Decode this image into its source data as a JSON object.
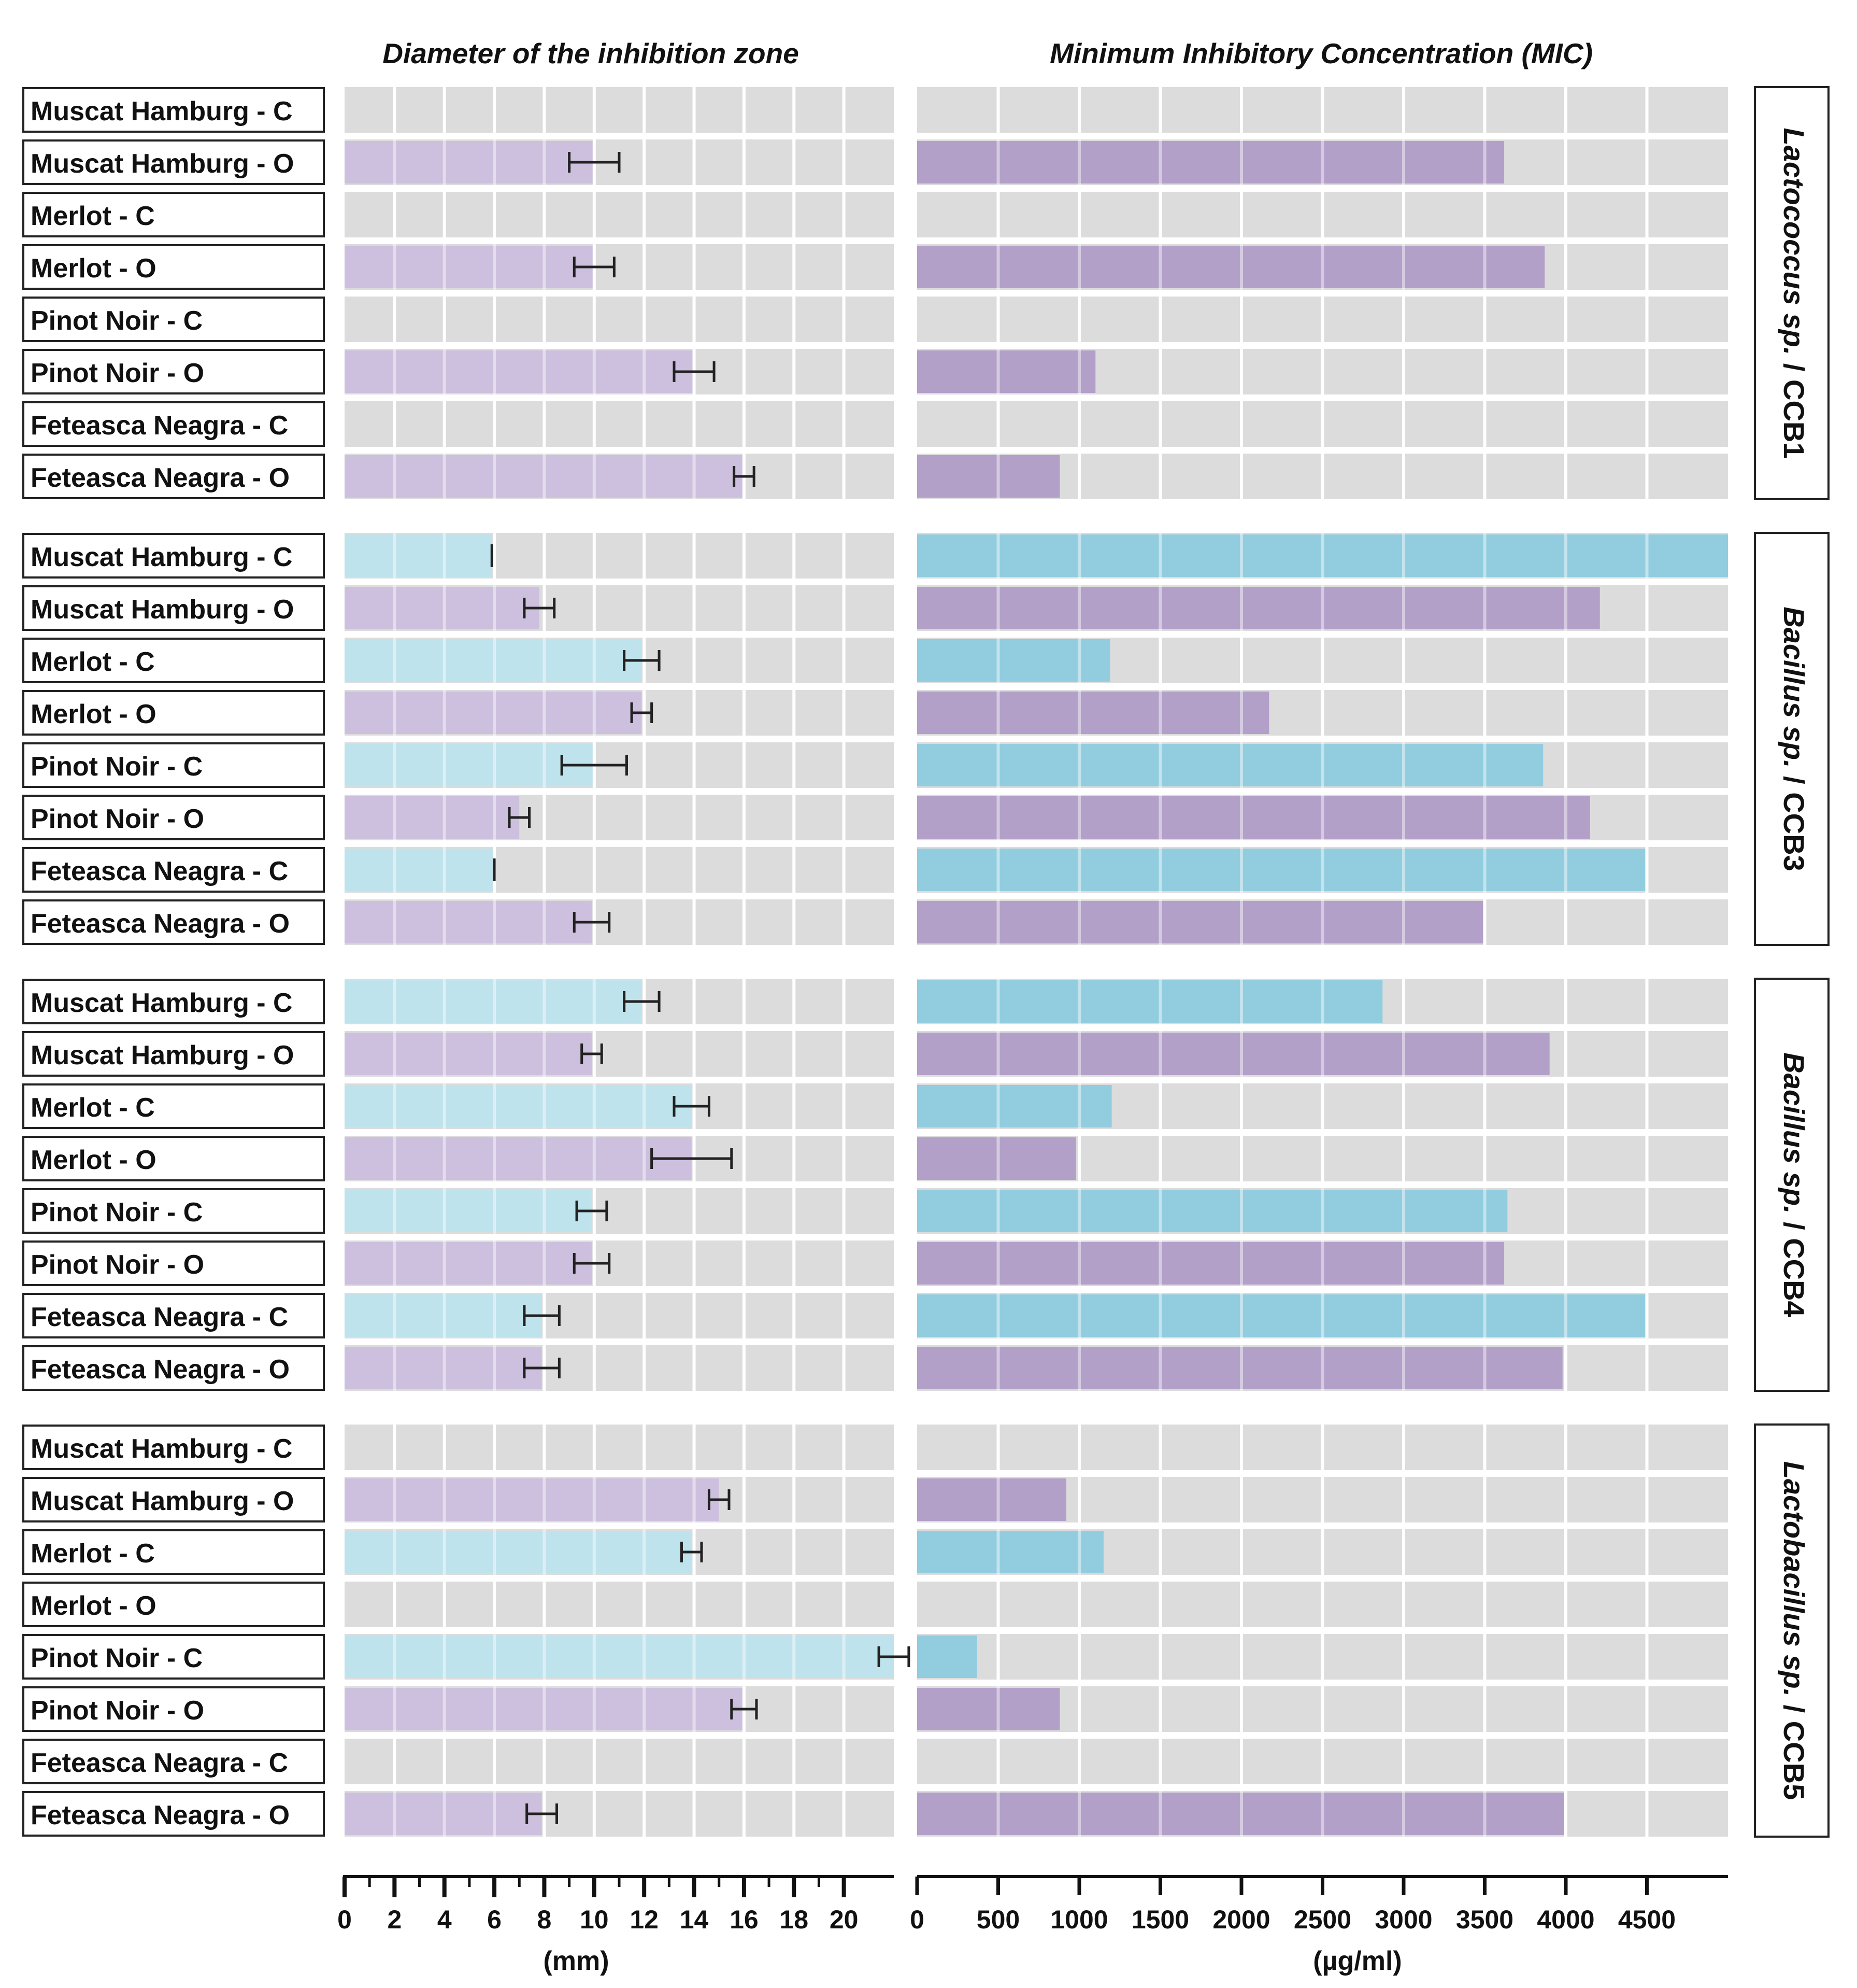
{
  "chart_data": [
    {
      "type": "bar",
      "orientation": "horizontal",
      "title": "Diameter of the inhibition zone",
      "xlabel": "(mm)",
      "xlim": [
        0,
        22
      ],
      "xticks": [
        "0",
        "2",
        "4",
        "6",
        "8",
        "10",
        "12",
        "14",
        "16",
        "18",
        "20"
      ],
      "grid": true,
      "color_C": "#bfe3ec",
      "color_O": "#cdc0de",
      "groups": [
        {
          "name": "Lactococcus sp. / CCB1",
          "rows": [
            {
              "label": "Muscat Hamburg - C",
              "value": 0,
              "error": 0
            },
            {
              "label": "Muscat Hamburg - O",
              "value": 10,
              "error": 1.0
            },
            {
              "label": "Merlot - C",
              "value": 0,
              "error": 0
            },
            {
              "label": "Merlot - O",
              "value": 10,
              "error": 0.8
            },
            {
              "label": "Pinot Noir - C",
              "value": 0,
              "error": 0
            },
            {
              "label": "Pinot Noir - O",
              "value": 14,
              "error": 0.8
            },
            {
              "label": "Feteasca Neagra - C",
              "value": 0,
              "error": 0
            },
            {
              "label": "Feteasca Neagra - O",
              "value": 16,
              "error": 0.4
            }
          ]
        },
        {
          "name": "Bacillus sp. / CCB3",
          "rows": [
            {
              "label": "Muscat Hamburg - C",
              "value": 5.9,
              "error": 0
            },
            {
              "label": "Muscat Hamburg - O",
              "value": 7.8,
              "error": 0.6
            },
            {
              "label": "Merlot - C",
              "value": 11.9,
              "error": 0.7
            },
            {
              "label": "Merlot - O",
              "value": 11.9,
              "error": 0.4
            },
            {
              "label": "Pinot Noir - C",
              "value": 10,
              "error": 1.3
            },
            {
              "label": "Pinot Noir - O",
              "value": 7,
              "error": 0.4
            },
            {
              "label": "Feteasca Neagra - C",
              "value": 6,
              "error": 0
            },
            {
              "label": "Feteasca Neagra - O",
              "value": 9.9,
              "error": 0.7
            }
          ]
        },
        {
          "name": "Bacillus sp. / CCB4",
          "rows": [
            {
              "label": "Muscat Hamburg - C",
              "value": 11.9,
              "error": 0.7
            },
            {
              "label": "Muscat Hamburg - O",
              "value": 9.9,
              "error": 0.4
            },
            {
              "label": "Merlot - C",
              "value": 13.9,
              "error": 0.7
            },
            {
              "label": "Merlot - O",
              "value": 13.9,
              "error": 1.6
            },
            {
              "label": "Pinot Noir - C",
              "value": 9.9,
              "error": 0.6
            },
            {
              "label": "Pinot Noir - O",
              "value": 9.9,
              "error": 0.7
            },
            {
              "label": "Feteasca Neagra - C",
              "value": 7.9,
              "error": 0.7
            },
            {
              "label": "Feteasca Neagra - O",
              "value": 7.9,
              "error": 0.7
            }
          ]
        },
        {
          "name": "Lactobacillus sp. / CCB5",
          "rows": [
            {
              "label": "Muscat Hamburg - C",
              "value": 0,
              "error": 0
            },
            {
              "label": "Muscat Hamburg - O",
              "value": 15,
              "error": 0.4
            },
            {
              "label": "Merlot - C",
              "value": 13.9,
              "error": 0.4
            },
            {
              "label": "Merlot - O",
              "value": 0,
              "error": 0
            },
            {
              "label": "Pinot Noir - C",
              "value": 22,
              "error": 0.6
            },
            {
              "label": "Pinot Noir - O",
              "value": 16,
              "error": 0.5
            },
            {
              "label": "Feteasca Neagra - C",
              "value": 0,
              "error": 0
            },
            {
              "label": "Feteasca Neagra - O",
              "value": 7.9,
              "error": 0.6
            }
          ]
        }
      ]
    },
    {
      "type": "bar",
      "orientation": "horizontal",
      "title": "Minimum Inhibitory Concentration (MIC)",
      "xlabel": "(µg/ml)",
      "xlim": [
        0,
        5000
      ],
      "xticks": [
        "0",
        "500",
        "1000",
        "1500",
        "2000",
        "2500",
        "3000",
        "3500",
        "4000",
        "4500"
      ],
      "grid": true,
      "color_C": "#92cddf",
      "color_O": "#b3a0c9",
      "groups": [
        {
          "name": "Lactococcus sp. / CCB1",
          "rows": [
            {
              "label": "Muscat Hamburg - C",
              "value": 0
            },
            {
              "label": "Muscat Hamburg - O",
              "value": 3620
            },
            {
              "label": "Merlot - C",
              "value": 0
            },
            {
              "label": "Merlot - O",
              "value": 3870
            },
            {
              "label": "Pinot Noir - C",
              "value": 0
            },
            {
              "label": "Pinot Noir - O",
              "value": 1100
            },
            {
              "label": "Feteasca Neagra - C",
              "value": 0
            },
            {
              "label": "Feteasca Neagra - O",
              "value": 880
            }
          ]
        },
        {
          "name": "Bacillus sp. / CCB3",
          "rows": [
            {
              "label": "Muscat Hamburg - C",
              "value": 5000
            },
            {
              "label": "Muscat Hamburg - O",
              "value": 4210
            },
            {
              "label": "Merlot - C",
              "value": 1190
            },
            {
              "label": "Merlot - O",
              "value": 2170
            },
            {
              "label": "Pinot Noir - C",
              "value": 3860
            },
            {
              "label": "Pinot Noir - O",
              "value": 4150
            },
            {
              "label": "Feteasca Neagra - C",
              "value": 4490
            },
            {
              "label": "Feteasca Neagra - O",
              "value": 3490
            }
          ]
        },
        {
          "name": "Bacillus sp. / CCB4",
          "rows": [
            {
              "label": "Muscat Hamburg - C",
              "value": 2870
            },
            {
              "label": "Muscat Hamburg - O",
              "value": 3900
            },
            {
              "label": "Merlot - C",
              "value": 1200
            },
            {
              "label": "Merlot - O",
              "value": 980
            },
            {
              "label": "Pinot Noir - C",
              "value": 3640
            },
            {
              "label": "Pinot Noir - O",
              "value": 3620
            },
            {
              "label": "Feteasca Neagra - C",
              "value": 4490
            },
            {
              "label": "Feteasca Neagra - O",
              "value": 3980
            }
          ]
        },
        {
          "name": "Lactobacillus sp. / CCB5",
          "rows": [
            {
              "label": "Muscat Hamburg - C",
              "value": 0
            },
            {
              "label": "Muscat Hamburg - O",
              "value": 920
            },
            {
              "label": "Merlot - C",
              "value": 1150
            },
            {
              "label": "Merlot - O",
              "value": 0
            },
            {
              "label": "Pinot Noir - C",
              "value": 370
            },
            {
              "label": "Pinot Noir - O",
              "value": 880
            },
            {
              "label": "Feteasca Neagra - C",
              "value": 0
            },
            {
              "label": "Feteasca Neagra - O",
              "value": 4000
            }
          ]
        }
      ]
    }
  ]
}
